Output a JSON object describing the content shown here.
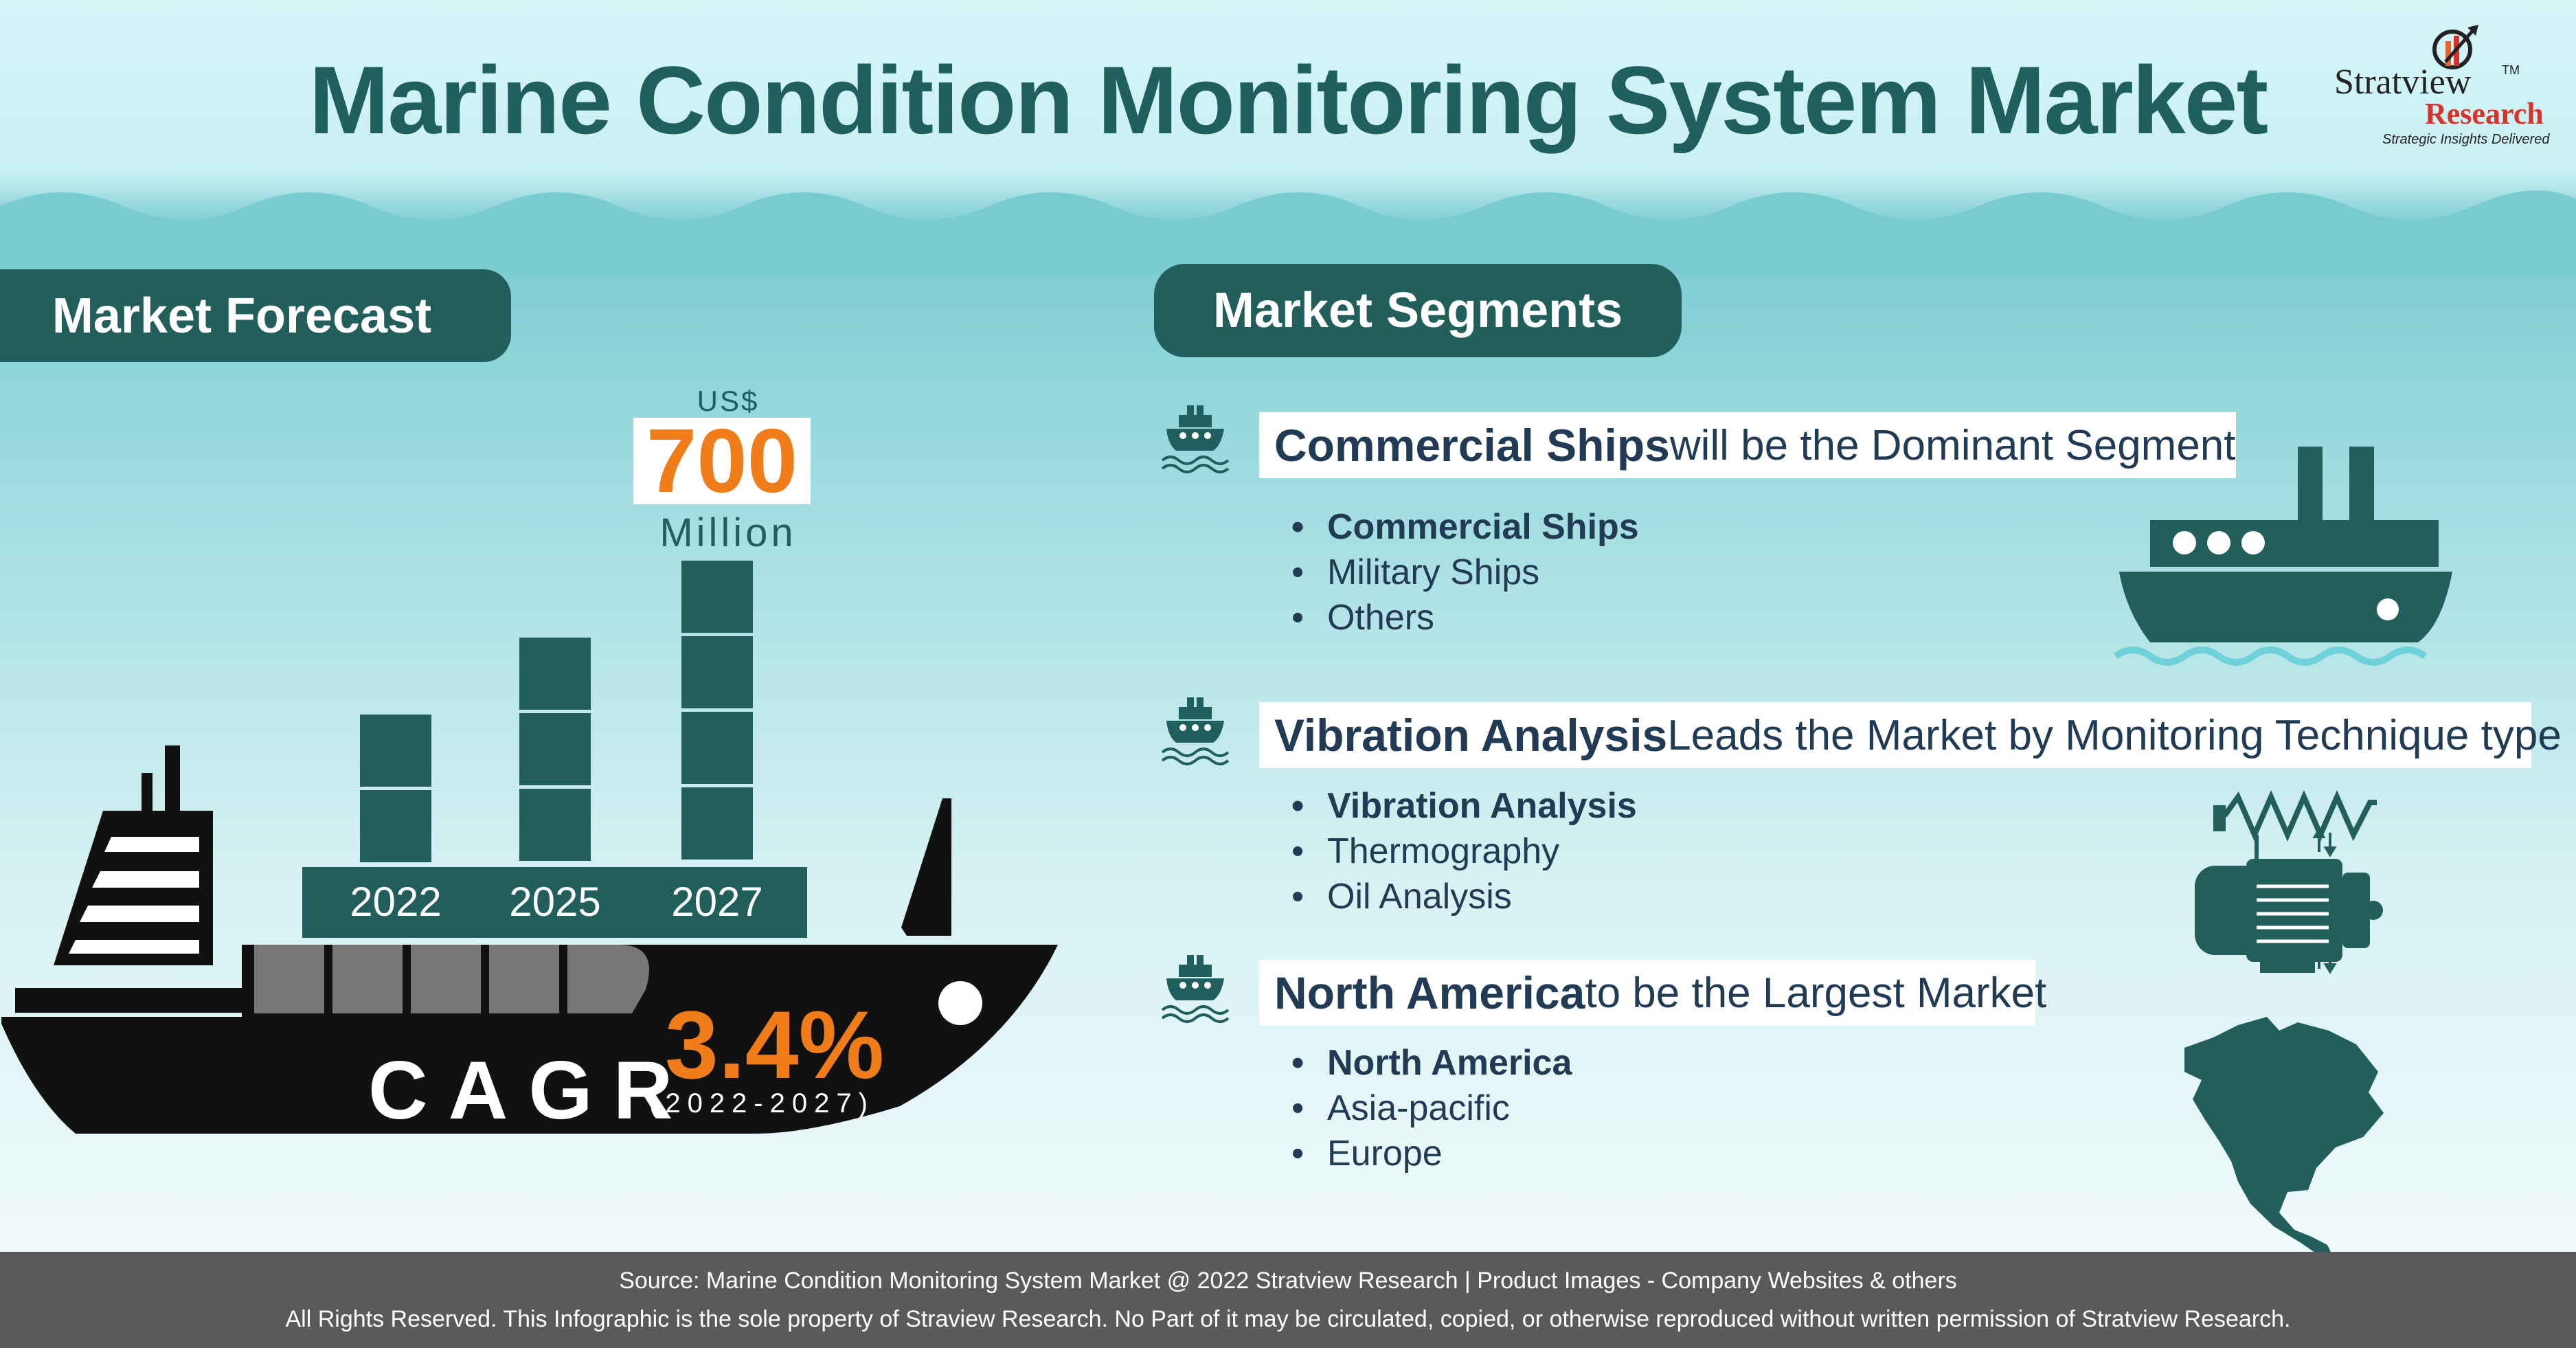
{
  "title": "Marine Condition Monitoring System Market",
  "logo": {
    "brand": "Stratview",
    "tm": "TM",
    "sub": "Research",
    "tagline": "Strategic Insights Delivered"
  },
  "forecast": {
    "heading": "Market Forecast",
    "currency": "US$",
    "value": "700",
    "unit": "Million",
    "years": [
      "2022",
      "2025",
      "2027"
    ],
    "cagr_label": "CAGR",
    "cagr_value": "3.4%",
    "cagr_period": "(2022-2027)"
  },
  "segments": {
    "heading": "Market Segments",
    "groups": [
      {
        "highlight": "Commercial Ships",
        "rest": " will be the Dominant Segment",
        "items": [
          "Commercial Ships",
          "Military Ships",
          "Others"
        ],
        "icon": "cargo-ship-icon"
      },
      {
        "highlight": "Vibration Analysis",
        "rest": " Leads the Market by Monitoring Technique type",
        "items": [
          "Vibration Analysis",
          "Thermography",
          "Oil Analysis"
        ],
        "icon": "vibration-motor-icon"
      },
      {
        "highlight": "North America",
        "rest": " to be the Largest Market",
        "items": [
          "North America",
          "Asia-pacific",
          "Europe"
        ],
        "icon": "north-america-map-icon"
      }
    ]
  },
  "footer": {
    "line1": "Source: Marine Condition Monitoring System Market @ 2022 Stratview Research | Product Images  - Company Websites & others",
    "line2": "All Rights Reserved. This Infographic is the sole property of Straview Research. No Part of it may be circulated, copied, or otherwise reproduced without written permission of Stratview Research."
  },
  "colors": {
    "teal_dark": "#215e5c",
    "orange": "#f07d1a",
    "navy_text": "#223b55",
    "footer_gray": "#5a5a5a"
  }
}
